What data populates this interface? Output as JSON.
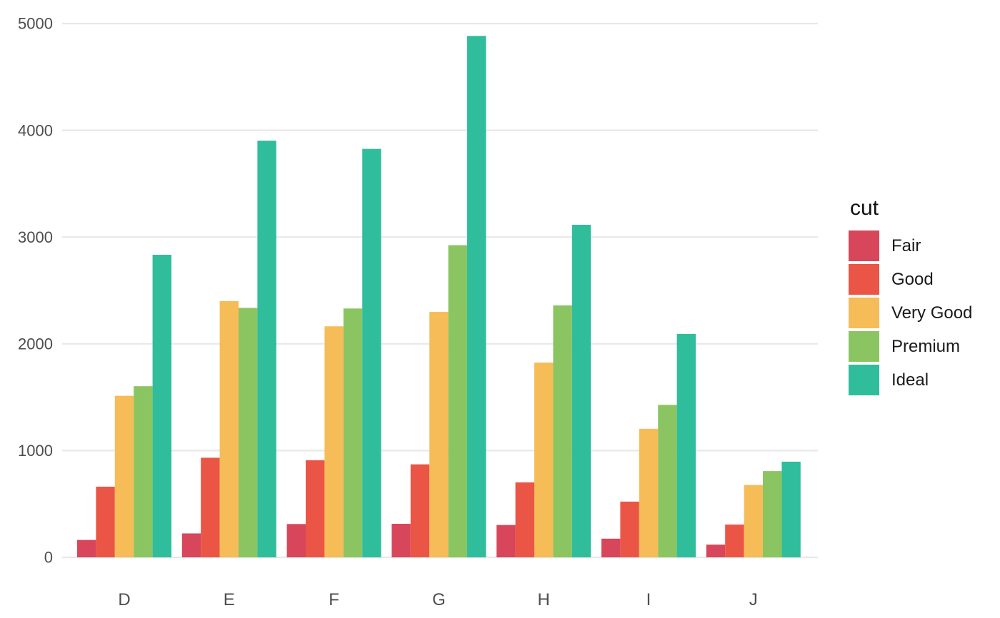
{
  "chart_data": {
    "type": "bar",
    "subtype": "grouped-vertical",
    "title": "",
    "xlabel": "",
    "ylabel": "",
    "categories": [
      "D",
      "E",
      "F",
      "G",
      "H",
      "I",
      "J"
    ],
    "series": [
      {
        "name": "Fair",
        "color": "#D7465A",
        "values": [
          163,
          224,
          312,
          314,
          303,
          175,
          119
        ]
      },
      {
        "name": "Good",
        "color": "#EA5545",
        "values": [
          662,
          933,
          909,
          871,
          702,
          522,
          307
        ]
      },
      {
        "name": "Very Good",
        "color": "#F5BC58",
        "values": [
          1513,
          2400,
          2164,
          2299,
          1824,
          1204,
          678
        ]
      },
      {
        "name": "Premium",
        "color": "#8BC561",
        "values": [
          1603,
          2337,
          2331,
          2924,
          2360,
          1428,
          808
        ]
      },
      {
        "name": "Ideal",
        "color": "#2FBD9C",
        "values": [
          2834,
          3903,
          3826,
          4884,
          3115,
          2093,
          896
        ]
      }
    ],
    "y_ticks": [
      0,
      1000,
      2000,
      3000,
      4000,
      5000
    ],
    "y_tick_labels": [
      "0",
      "1000",
      "2000",
      "3000",
      "4000",
      "5000"
    ],
    "ylim": [
      0,
      5000
    ],
    "grid": "horizontal-major-only",
    "legend": {
      "title": "cut",
      "position": "right",
      "entries": [
        "Fair",
        "Good",
        "Very Good",
        "Premium",
        "Ideal"
      ]
    },
    "colors": {
      "background": "#FFFFFF",
      "gridline": "#E8E8E8",
      "axis_text": "#4D4D4D",
      "legend_title_text": "#111111",
      "legend_label_text": "#1A1A1A"
    }
  }
}
